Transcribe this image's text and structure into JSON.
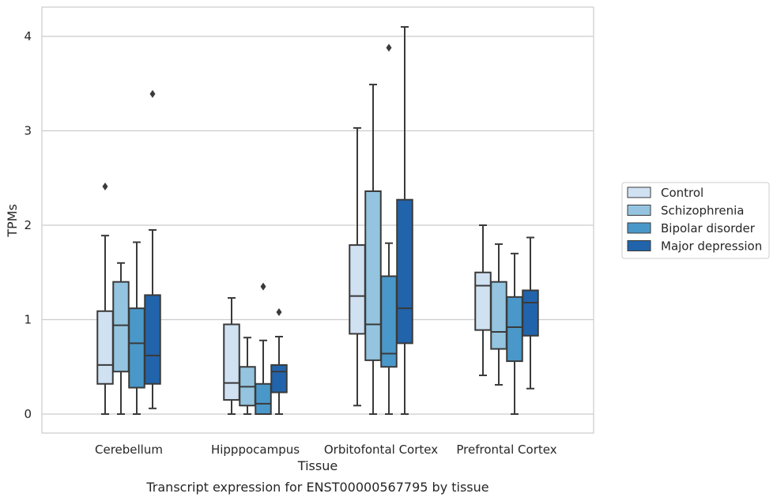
{
  "chart_data": {
    "type": "boxplot",
    "caption": "Transcript expression for ENST00000567795 by tissue",
    "xlabel": "Tissue",
    "ylabel": "TPMs",
    "ylim": [
      -0.2,
      4.3
    ],
    "yticks": [
      0,
      1,
      2,
      3,
      4
    ],
    "grid": "horizontal",
    "legend_position": "right",
    "categories": [
      "Cerebellum",
      "Hipppocampus",
      "Orbitofontal Cortex",
      "Prefrontal Cortex"
    ],
    "series": [
      {
        "name": "Control",
        "color": "#d0e1f2",
        "boxes": [
          {
            "whislo": 0.0,
            "q1": 0.32,
            "med": 0.52,
            "q3": 1.09,
            "whishi": 1.89,
            "fliers": [
              2.41
            ]
          },
          {
            "whislo": 0.0,
            "q1": 0.15,
            "med": 0.33,
            "q3": 0.95,
            "whishi": 1.23,
            "fliers": []
          },
          {
            "whislo": 0.09,
            "q1": 0.85,
            "med": 1.25,
            "q3": 1.79,
            "whishi": 3.03,
            "fliers": []
          },
          {
            "whislo": 0.41,
            "q1": 0.89,
            "med": 1.36,
            "q3": 1.5,
            "whishi": 2.0,
            "fliers": []
          }
        ]
      },
      {
        "name": "Schizophrenia",
        "color": "#94c4df",
        "boxes": [
          {
            "whislo": 0.0,
            "q1": 0.45,
            "med": 0.94,
            "q3": 1.4,
            "whishi": 1.6,
            "fliers": []
          },
          {
            "whislo": 0.0,
            "q1": 0.09,
            "med": 0.29,
            "q3": 0.5,
            "whishi": 0.81,
            "fliers": []
          },
          {
            "whislo": 0.0,
            "q1": 0.57,
            "med": 0.95,
            "q3": 2.36,
            "whishi": 3.49,
            "fliers": []
          },
          {
            "whislo": 0.31,
            "q1": 0.69,
            "med": 0.87,
            "q3": 1.4,
            "whishi": 1.8,
            "fliers": []
          }
        ]
      },
      {
        "name": "Bipolar disorder",
        "color": "#4a98c9",
        "boxes": [
          {
            "whislo": 0.0,
            "q1": 0.28,
            "med": 0.75,
            "q3": 1.12,
            "whishi": 1.82,
            "fliers": []
          },
          {
            "whislo": 0.0,
            "q1": 0.0,
            "med": 0.11,
            "q3": 0.32,
            "whishi": 0.78,
            "fliers": [
              1.35
            ]
          },
          {
            "whislo": 0.0,
            "q1": 0.5,
            "med": 0.64,
            "q3": 1.46,
            "whishi": 1.81,
            "fliers": [
              3.88
            ]
          },
          {
            "whislo": 0.0,
            "q1": 0.56,
            "med": 0.92,
            "q3": 1.24,
            "whishi": 1.7,
            "fliers": []
          }
        ]
      },
      {
        "name": "Major depression",
        "color": "#2264ab",
        "boxes": [
          {
            "whislo": 0.06,
            "q1": 0.32,
            "med": 0.62,
            "q3": 1.26,
            "whishi": 1.95,
            "fliers": [
              3.39
            ]
          },
          {
            "whislo": 0.0,
            "q1": 0.23,
            "med": 0.45,
            "q3": 0.52,
            "whishi": 0.82,
            "fliers": [
              1.08
            ]
          },
          {
            "whislo": 0.0,
            "q1": 0.75,
            "med": 1.12,
            "q3": 2.27,
            "whishi": 4.1,
            "fliers": []
          },
          {
            "whislo": 0.27,
            "q1": 0.83,
            "med": 1.18,
            "q3": 1.31,
            "whishi": 1.87,
            "fliers": []
          }
        ]
      }
    ]
  }
}
